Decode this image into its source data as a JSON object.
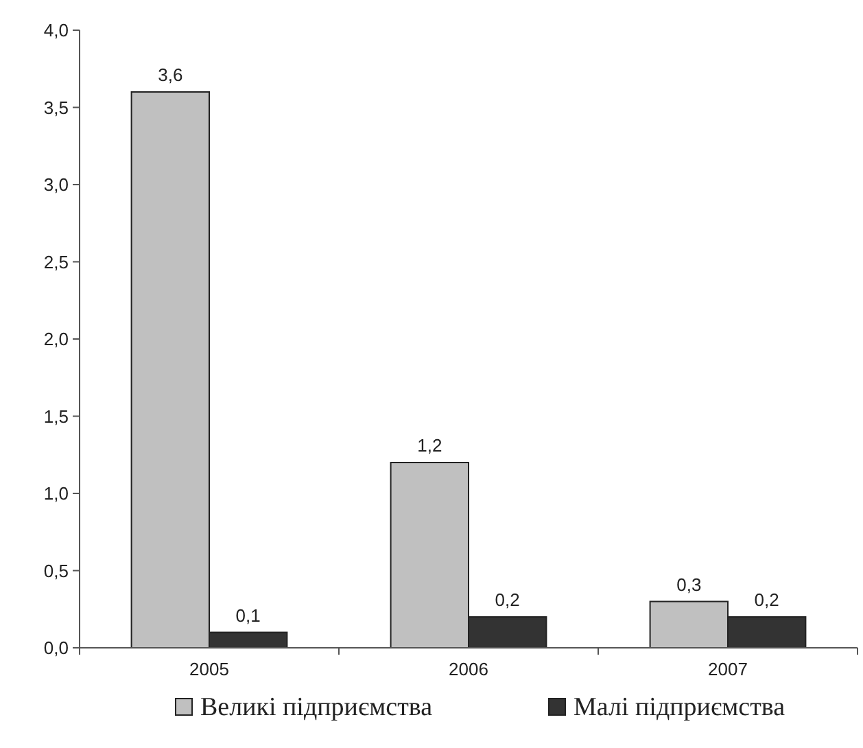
{
  "chart_data": {
    "type": "bar",
    "categories": [
      "2005",
      "2006",
      "2007"
    ],
    "series": [
      {
        "name": "Великі підприємства",
        "color": "#c0c0c0",
        "values": [
          3.6,
          1.2,
          0.3
        ],
        "value_labels": [
          "3,6",
          "1,2",
          "0,3"
        ]
      },
      {
        "name": "Малі підприємства",
        "color": "#333333",
        "values": [
          0.1,
          0.2,
          0.2
        ],
        "value_labels": [
          "0,1",
          "0,2",
          "0,2"
        ]
      }
    ],
    "ylim": [
      0,
      4
    ],
    "yticks": [
      {
        "value": 0,
        "label": "0,0"
      },
      {
        "value": 0.5,
        "label": "0,5"
      },
      {
        "value": 1,
        "label": "1,0"
      },
      {
        "value": 1.5,
        "label": "1,5"
      },
      {
        "value": 2,
        "label": "2,0"
      },
      {
        "value": 2.5,
        "label": "2,5"
      },
      {
        "value": 3,
        "label": "3,0"
      },
      {
        "value": 3.5,
        "label": "3,5"
      },
      {
        "value": 4,
        "label": "4,0"
      }
    ],
    "grid": false,
    "legend": "bottom"
  }
}
